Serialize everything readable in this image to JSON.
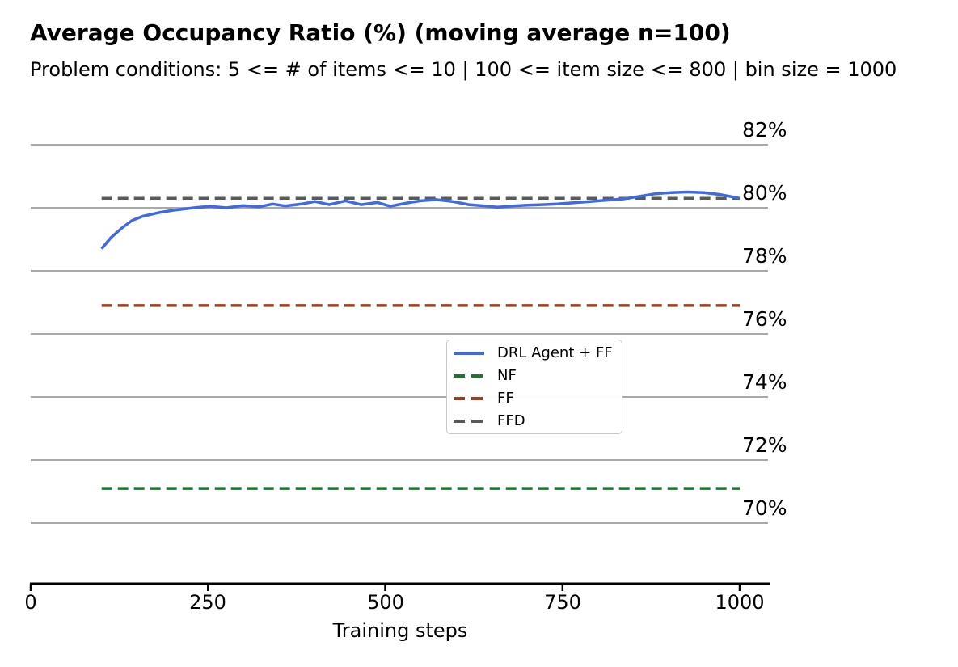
{
  "chart_data": {
    "type": "line",
    "title": "Average Occupancy Ratio (%) (moving average n=100)",
    "subtitle": "Problem conditions: 5 <= # of items <= 10 | 100 <= item size <= 800 | bin size = 1000",
    "xlabel": "Training steps",
    "x_ticks": [
      0,
      250,
      500,
      750,
      1000
    ],
    "y_ticks": [
      82,
      80,
      78,
      76,
      74,
      72,
      70
    ],
    "y_tick_suffix": "%",
    "xlim": [
      0,
      1042
    ],
    "ylim": [
      68.1,
      83.0
    ],
    "grid": "horizontal-only",
    "gridline_color": "#a9a9a9",
    "axis_color": "#000000",
    "y_axis_side": "right",
    "legend": {
      "position": "center",
      "entries": [
        "DRL Agent + FF",
        "NF",
        "FF",
        "FFD"
      ]
    },
    "series": [
      {
        "name": "DRL Agent + FF",
        "color": "#4169E1",
        "style": "solid",
        "x": [
          100,
          113,
          128,
          143,
          158,
          181,
          204,
          230,
          253,
          276,
          299,
          322,
          341,
          359,
          382,
          401,
          421,
          444,
          466,
          489,
          507,
          535,
          550,
          572,
          595,
          618,
          641,
          658,
          675,
          698,
          721,
          743,
          766,
          789,
          812,
          835,
          858,
          880,
          903,
          926,
          949,
          972,
          989,
          1000
        ],
        "y": [
          78.7,
          79.05,
          79.35,
          79.6,
          79.73,
          79.85,
          79.93,
          80.0,
          80.05,
          80.0,
          80.07,
          80.03,
          80.12,
          80.06,
          80.12,
          80.2,
          80.1,
          80.22,
          80.1,
          80.17,
          80.05,
          80.17,
          80.22,
          80.26,
          80.2,
          80.1,
          80.06,
          80.02,
          80.05,
          80.08,
          80.1,
          80.12,
          80.16,
          80.2,
          80.24,
          80.28,
          80.36,
          80.44,
          80.48,
          80.5,
          80.48,
          80.42,
          80.35,
          80.3
        ]
      },
      {
        "name": "NF",
        "color": "#1A7830",
        "style": "dashed",
        "x": [
          100,
          1000
        ],
        "y": [
          71.1,
          71.1
        ]
      },
      {
        "name": "FF",
        "color": "#9E4023",
        "style": "dashed",
        "x": [
          100,
          1000
        ],
        "y": [
          76.9,
          76.9
        ]
      },
      {
        "name": "FFD",
        "color": "#58595B",
        "style": "dashed",
        "x": [
          100,
          1000
        ],
        "y": [
          80.3,
          80.3
        ]
      }
    ]
  }
}
